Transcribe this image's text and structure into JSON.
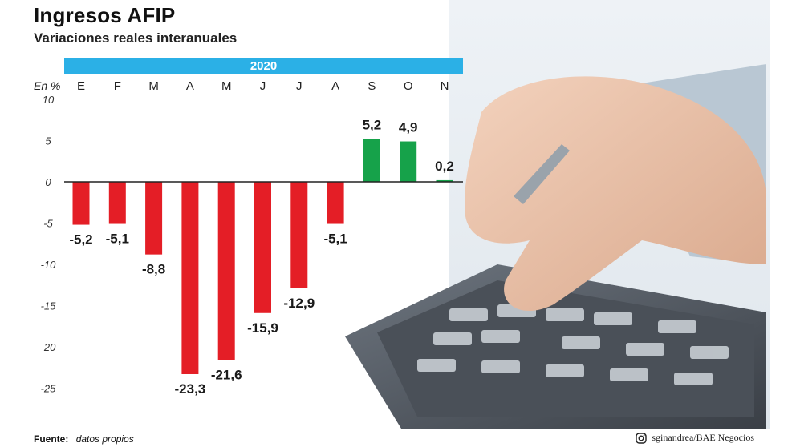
{
  "header": {
    "title": "Ingresos AFIP",
    "subtitle": "Variaciones reales interanuales"
  },
  "colors": {
    "band": "#2bb0e6",
    "negative": "#e41e26",
    "positive": "#16a24a"
  },
  "chart_data": {
    "type": "bar",
    "year_label": "2020",
    "unit_label": "En %",
    "categories": [
      "E",
      "F",
      "M",
      "A",
      "M",
      "J",
      "J",
      "A",
      "S",
      "O",
      "N"
    ],
    "values": [
      -5.2,
      -5.1,
      -8.8,
      -23.3,
      -21.6,
      -15.9,
      -12.9,
      -5.1,
      5.2,
      4.9,
      0.2
    ],
    "value_labels": [
      "-5,2",
      "-5,1",
      "-8,8",
      "-23,3",
      "-21,6",
      "-15,9",
      "-12,9",
      "-5,1",
      "5,2",
      "4,9",
      "0,2"
    ],
    "yticks": [
      10,
      5,
      0,
      -5,
      -10,
      -15,
      -20,
      -25
    ],
    "ylim": [
      -25,
      10
    ],
    "grid": false
  },
  "footer": {
    "source_label": "Fuente:",
    "source_value": "datos propios",
    "credit": "sginandrea/BAE Negocios"
  }
}
